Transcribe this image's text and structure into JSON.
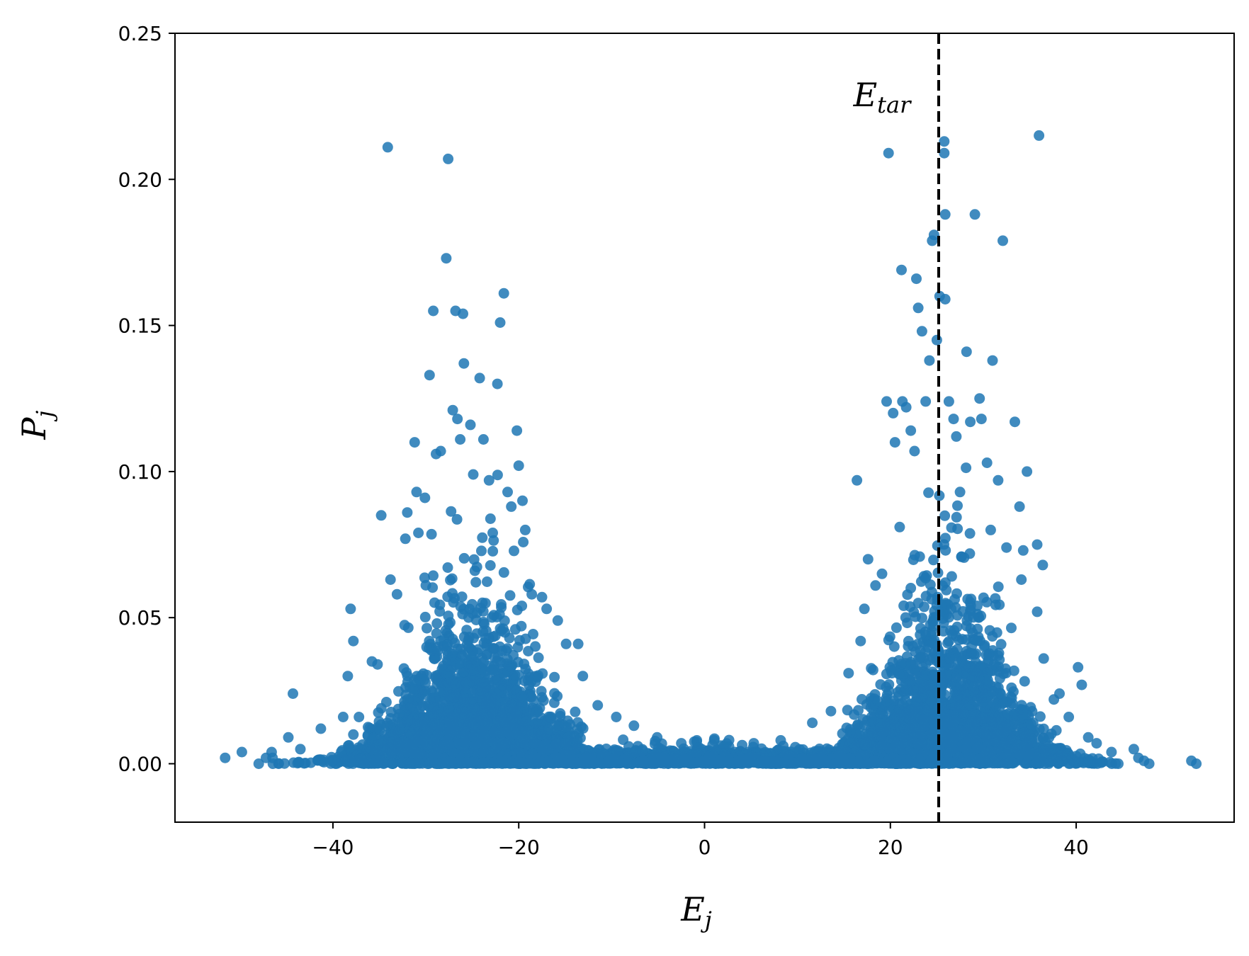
{
  "chart_data": {
    "type": "scatter",
    "title": "",
    "xlabel": {
      "main": "E",
      "sub": "j"
    },
    "ylabel": {
      "main": "P",
      "sub": "j"
    },
    "xlim": [
      -57,
      57
    ],
    "ylim": [
      -0.02,
      0.25
    ],
    "xticks": [
      -40,
      -20,
      0,
      20,
      40
    ],
    "xtick_labels": [
      "−40",
      "−20",
      "0",
      "20",
      "40"
    ],
    "yticks": [
      0.0,
      0.05,
      0.1,
      0.15,
      0.2,
      0.25
    ],
    "ytick_labels": [
      "0.00",
      "0.05",
      "0.10",
      "0.15",
      "0.20",
      "0.25"
    ],
    "grid": false,
    "marker_color": "#1f77b4",
    "reference_line": {
      "x": 25.2,
      "style": "dashed",
      "color": "#000000",
      "label_main": "E",
      "label_sub": "tar"
    },
    "series": [
      {
        "points": [
          [
            -51.6,
            0.002
          ],
          [
            -49.8,
            0.004
          ],
          [
            -47.2,
            0.002
          ],
          [
            -46.6,
            0.004
          ],
          [
            -46.5,
            0.002
          ],
          [
            -44.3,
            0.024
          ],
          [
            -44.8,
            0.009
          ],
          [
            -43.5,
            0.005
          ],
          [
            -41.3,
            0.012
          ],
          [
            -38.9,
            0.016
          ],
          [
            -38.4,
            0.03
          ],
          [
            -38.1,
            0.053
          ],
          [
            -37.8,
            0.042
          ],
          [
            -37.2,
            0.016
          ],
          [
            -35.8,
            0.035
          ],
          [
            -35.2,
            0.034
          ],
          [
            -34.8,
            0.085
          ],
          [
            -34.1,
            0.211
          ],
          [
            -33.8,
            0.063
          ],
          [
            -33.1,
            0.058
          ],
          [
            -32.2,
            0.077
          ],
          [
            -32.0,
            0.086
          ],
          [
            -31.2,
            0.11
          ],
          [
            -31.0,
            0.093
          ],
          [
            -30.8,
            0.079
          ],
          [
            -30.1,
            0.091
          ],
          [
            -29.6,
            0.133
          ],
          [
            -29.2,
            0.155
          ],
          [
            -28.9,
            0.106
          ],
          [
            -28.4,
            0.107
          ],
          [
            -27.8,
            0.173
          ],
          [
            -27.6,
            0.207
          ],
          [
            -27.1,
            0.121
          ],
          [
            -26.8,
            0.155
          ],
          [
            -26.6,
            0.118
          ],
          [
            -26.3,
            0.111
          ],
          [
            -26.0,
            0.154
          ],
          [
            -25.9,
            0.137
          ],
          [
            -25.2,
            0.116
          ],
          [
            -24.9,
            0.099
          ],
          [
            -24.2,
            0.132
          ],
          [
            -23.8,
            0.111
          ],
          [
            -23.2,
            0.097
          ],
          [
            -22.8,
            0.079
          ],
          [
            -22.3,
            0.13
          ],
          [
            -22.0,
            0.151
          ],
          [
            -21.6,
            0.161
          ],
          [
            -21.2,
            0.093
          ],
          [
            -20.8,
            0.088
          ],
          [
            -20.2,
            0.114
          ],
          [
            -20.0,
            0.102
          ],
          [
            -19.6,
            0.09
          ],
          [
            -19.3,
            0.08
          ],
          [
            -18.6,
            0.058
          ],
          [
            -17.5,
            0.057
          ],
          [
            -17.0,
            0.053
          ],
          [
            -15.8,
            0.049
          ],
          [
            -14.9,
            0.041
          ],
          [
            -13.6,
            0.041
          ],
          [
            -13.1,
            0.03
          ],
          [
            -11.5,
            0.02
          ],
          [
            -9.5,
            0.016
          ],
          [
            -7.6,
            0.013
          ],
          [
            -5.1,
            0.009
          ],
          [
            -2.5,
            0.007
          ],
          [
            2.1,
            0.006
          ],
          [
            5.3,
            0.007
          ],
          [
            8.2,
            0.008
          ],
          [
            11.6,
            0.014
          ],
          [
            13.6,
            0.018
          ],
          [
            15.5,
            0.031
          ],
          [
            16.4,
            0.097
          ],
          [
            16.8,
            0.042
          ],
          [
            17.2,
            0.053
          ],
          [
            17.6,
            0.07
          ],
          [
            18.4,
            0.061
          ],
          [
            19.1,
            0.065
          ],
          [
            19.6,
            0.124
          ],
          [
            19.8,
            0.209
          ],
          [
            20.3,
            0.12
          ],
          [
            20.5,
            0.11
          ],
          [
            21.0,
            0.081
          ],
          [
            21.2,
            0.169
          ],
          [
            21.3,
            0.124
          ],
          [
            21.7,
            0.122
          ],
          [
            22.2,
            0.114
          ],
          [
            22.6,
            0.107
          ],
          [
            22.8,
            0.166
          ],
          [
            23.0,
            0.156
          ],
          [
            23.4,
            0.148
          ],
          [
            23.8,
            0.124
          ],
          [
            24.2,
            0.138
          ],
          [
            24.5,
            0.179
          ],
          [
            24.7,
            0.181
          ],
          [
            25.0,
            0.145
          ],
          [
            25.3,
            0.16
          ],
          [
            25.8,
            0.213
          ],
          [
            25.8,
            0.209
          ],
          [
            25.9,
            0.188
          ],
          [
            25.9,
            0.159
          ],
          [
            26.3,
            0.124
          ],
          [
            26.8,
            0.118
          ],
          [
            27.1,
            0.112
          ],
          [
            27.5,
            0.093
          ],
          [
            28.2,
            0.141
          ],
          [
            28.6,
            0.117
          ],
          [
            29.1,
            0.188
          ],
          [
            29.6,
            0.125
          ],
          [
            29.8,
            0.118
          ],
          [
            30.4,
            0.103
          ],
          [
            30.8,
            0.08
          ],
          [
            31.0,
            0.138
          ],
          [
            31.6,
            0.097
          ],
          [
            32.1,
            0.179
          ],
          [
            32.5,
            0.074
          ],
          [
            33.4,
            0.117
          ],
          [
            33.9,
            0.088
          ],
          [
            34.1,
            0.063
          ],
          [
            34.3,
            0.073
          ],
          [
            34.7,
            0.1
          ],
          [
            35.8,
            0.075
          ],
          [
            35.8,
            0.052
          ],
          [
            36.0,
            0.215
          ],
          [
            36.4,
            0.068
          ],
          [
            36.5,
            0.036
          ],
          [
            37.6,
            0.022
          ],
          [
            38.2,
            0.024
          ],
          [
            39.2,
            0.016
          ],
          [
            40.2,
            0.033
          ],
          [
            40.6,
            0.027
          ],
          [
            41.3,
            0.009
          ],
          [
            42.2,
            0.007
          ],
          [
            43.8,
            0.004
          ],
          [
            46.2,
            0.005
          ],
          [
            46.7,
            0.002
          ],
          [
            47.3,
            0.001
          ],
          [
            52.4,
            0.001
          ]
        ],
        "clusters": [
          {
            "cx": -25,
            "sx": 6.5,
            "amp": 0.06,
            "n": 2200
          },
          {
            "cx": 26,
            "sx": 6.0,
            "amp": 0.065,
            "n": 2200
          },
          {
            "cx": 0,
            "sx": 14,
            "amp": 0.006,
            "n": 1600
          }
        ]
      }
    ]
  }
}
